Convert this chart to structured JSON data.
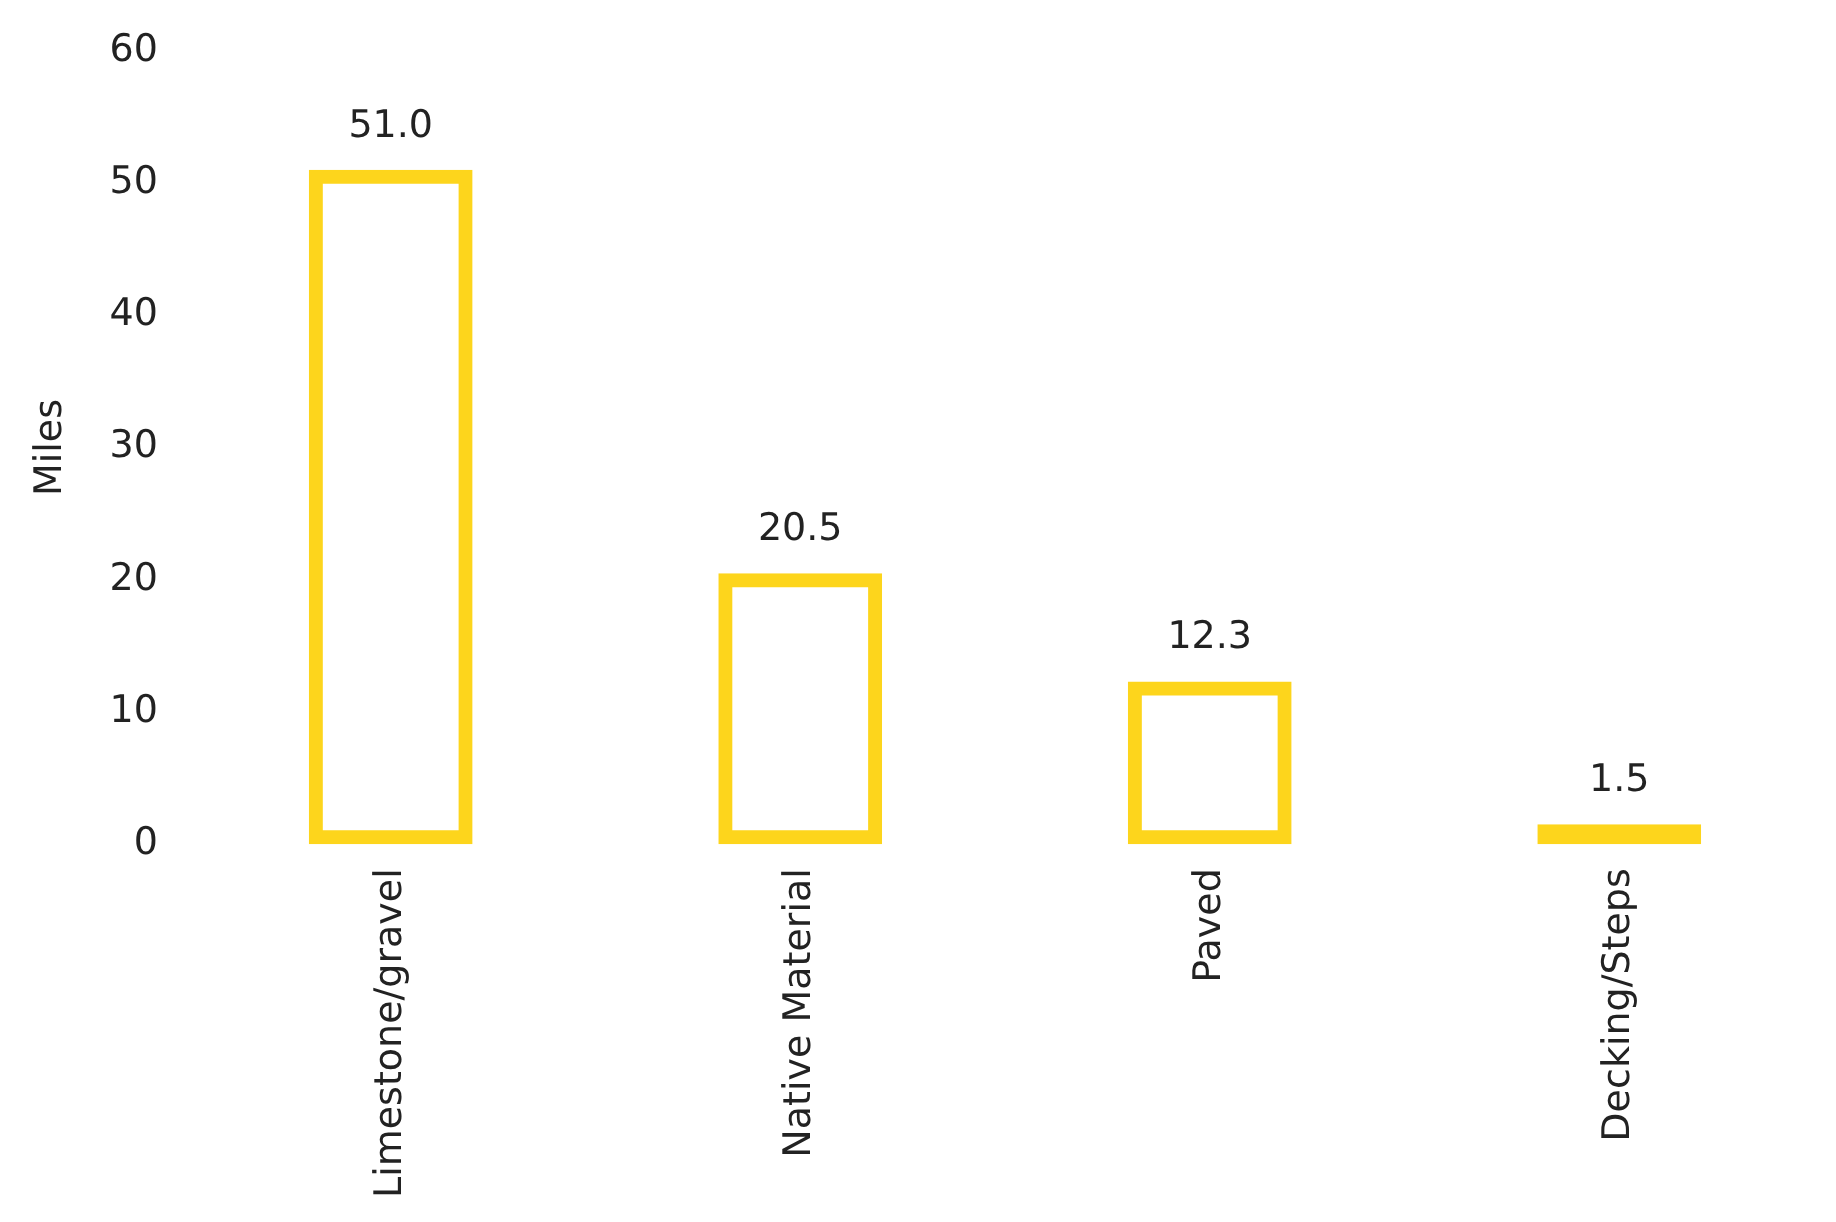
{
  "chart_data": {
    "type": "bar",
    "ylabel": "Miles",
    "categories": [
      "Limestone/gravel",
      "Native Material",
      "Paved",
      "Decking/Steps"
    ],
    "values": [
      51.0,
      20.5,
      12.3,
      1.5
    ],
    "color": "#fdd51c",
    "value_labels": [
      "51.0",
      "20.5",
      "12.3",
      "1.5"
    ],
    "ylim": [
      0,
      60
    ],
    "yticks": [
      0,
      10,
      20,
      30,
      40,
      50,
      60
    ],
    "grid": false,
    "legend": false
  }
}
